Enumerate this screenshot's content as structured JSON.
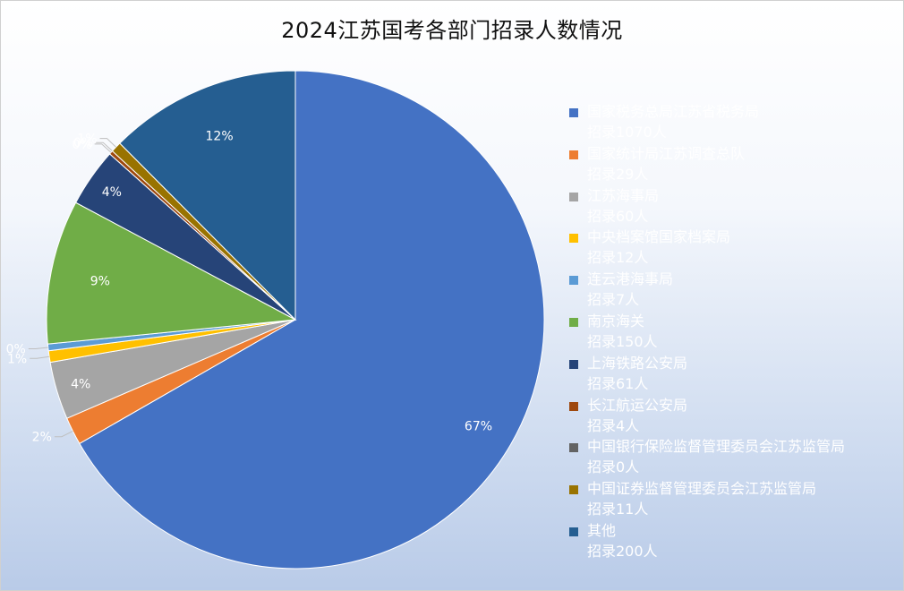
{
  "chart_data": {
    "type": "pie",
    "title": "2024江苏国考各部门招录人数情况",
    "slices": [
      {
        "name": "国家税务总局江苏省税务局",
        "sub": "招录1070人",
        "value": 1070,
        "pct_label": "67%",
        "color": "#4472C4"
      },
      {
        "name": "国家统计局江苏调查总队",
        "sub": "招录29人",
        "value": 29,
        "pct_label": "2%",
        "color": "#ED7D31"
      },
      {
        "name": "江苏海事局",
        "sub": "招录60人",
        "value": 60,
        "pct_label": "4%",
        "color": "#A5A5A5"
      },
      {
        "name": "中央档案馆国家档案局",
        "sub": "招录12人",
        "value": 12,
        "pct_label": "1%",
        "color": "#FFC000"
      },
      {
        "name": "连云港海事局",
        "sub": "招录7人",
        "value": 7,
        "pct_label": "0%",
        "color": "#5B9BD5"
      },
      {
        "name": "南京海关",
        "sub": "招录150人",
        "value": 150,
        "pct_label": "9%",
        "color": "#70AD47"
      },
      {
        "name": "上海铁路公安局",
        "sub": "招录61人",
        "value": 61,
        "pct_label": "4%",
        "color": "#264478"
      },
      {
        "name": "长江航运公安局",
        "sub": "招录4人",
        "value": 4,
        "pct_label": "0%",
        "color": "#9E480E"
      },
      {
        "name": "中国银行保险监督管理委员会江苏监管局",
        "sub": "招录0人",
        "value": 0,
        "pct_label": "0%",
        "color": "#636363"
      },
      {
        "name": "中国证券监督管理委员会江苏监管局",
        "sub": "招录11人",
        "value": 11,
        "pct_label": "1%",
        "color": "#997300"
      },
      {
        "name": "其他",
        "sub": "招录200人",
        "value": 200,
        "pct_label": "12%",
        "color": "#255E91"
      }
    ],
    "legend_position": "right"
  }
}
